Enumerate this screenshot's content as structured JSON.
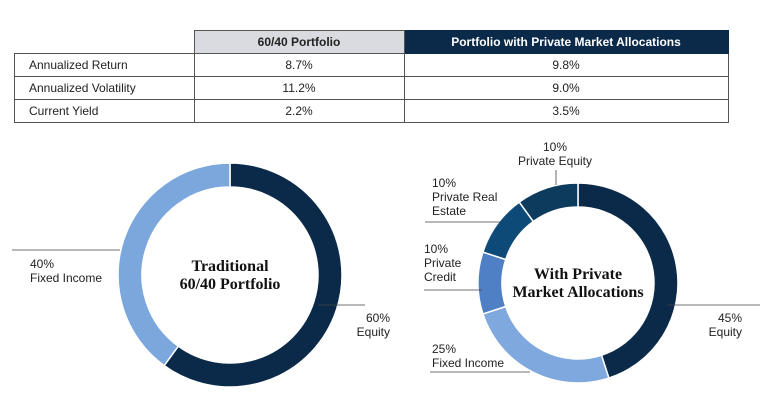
{
  "table": {
    "header": [
      "60/40 Portfolio",
      "Portfolio with Private Market Allocations"
    ],
    "rows": [
      [
        "Annualized Return",
        "8.7%",
        "9.8%"
      ],
      [
        "Annualized Volatility",
        "11.2%",
        "9.0%"
      ],
      [
        "Current Yield",
        "2.2%",
        "3.5%"
      ]
    ]
  },
  "chart_data": [
    {
      "type": "donut",
      "center_label": [
        "Traditional",
        "60/40 Portfolio"
      ],
      "categories": [
        "Equity",
        "Fixed Income"
      ],
      "values": [
        60,
        40
      ],
      "value_labels": [
        "60%",
        "40%"
      ],
      "colors": [
        "#0b2a4a",
        "#7ba7dc"
      ]
    },
    {
      "type": "donut",
      "center_label": [
        "With Private",
        "Market Allocations"
      ],
      "categories": [
        "Equity",
        "Fixed Income",
        "Private Credit",
        "Private Real Estate",
        "Private Equity"
      ],
      "values": [
        45,
        25,
        10,
        10,
        10
      ],
      "value_labels": [
        "45%",
        "25%",
        "10%",
        "10%",
        "10%"
      ],
      "colors": [
        "#0b2a4a",
        "#7fa8de",
        "#4f7fc4",
        "#0e4a78",
        "#0d3b5e"
      ]
    }
  ]
}
